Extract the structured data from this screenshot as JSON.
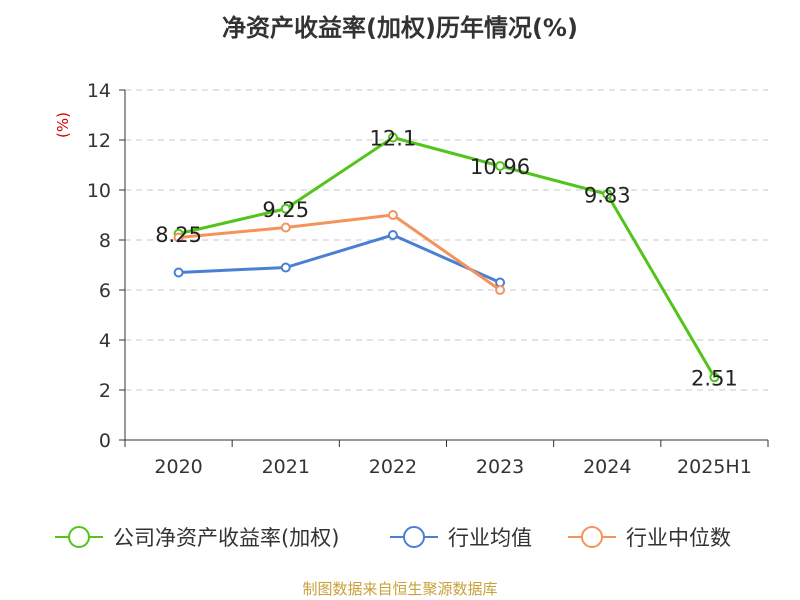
{
  "chart_data": {
    "type": "line",
    "title": "净资产收益率(加权)历年情况(%)",
    "ylabel": "(%)",
    "categories": [
      "2020",
      "2021",
      "2022",
      "2023",
      "2024",
      "2025H1"
    ],
    "ylim": [
      0,
      14
    ],
    "yticks": [
      0,
      2,
      4,
      6,
      8,
      10,
      12,
      14
    ],
    "grid": true,
    "legend_position": "bottom",
    "series": [
      {
        "name": "公司净资产收益率(加权)",
        "color": "#52c41a",
        "values": [
          8.25,
          9.25,
          12.1,
          10.96,
          9.83,
          2.51
        ],
        "labels": [
          "8.25",
          "9.25",
          "12.1",
          "10.96",
          "9.83",
          "2.51"
        ],
        "show_labels": true
      },
      {
        "name": "行业均值",
        "color": "#4a7fd4",
        "values": [
          6.7,
          6.9,
          8.2,
          6.3,
          null,
          null
        ],
        "show_labels": false
      },
      {
        "name": "行业中位数",
        "color": "#f4935c",
        "values": [
          8.1,
          8.5,
          9.0,
          6.0,
          null,
          null
        ],
        "show_labels": false
      }
    ]
  },
  "footer": "制图数据来自恒生聚源数据库"
}
